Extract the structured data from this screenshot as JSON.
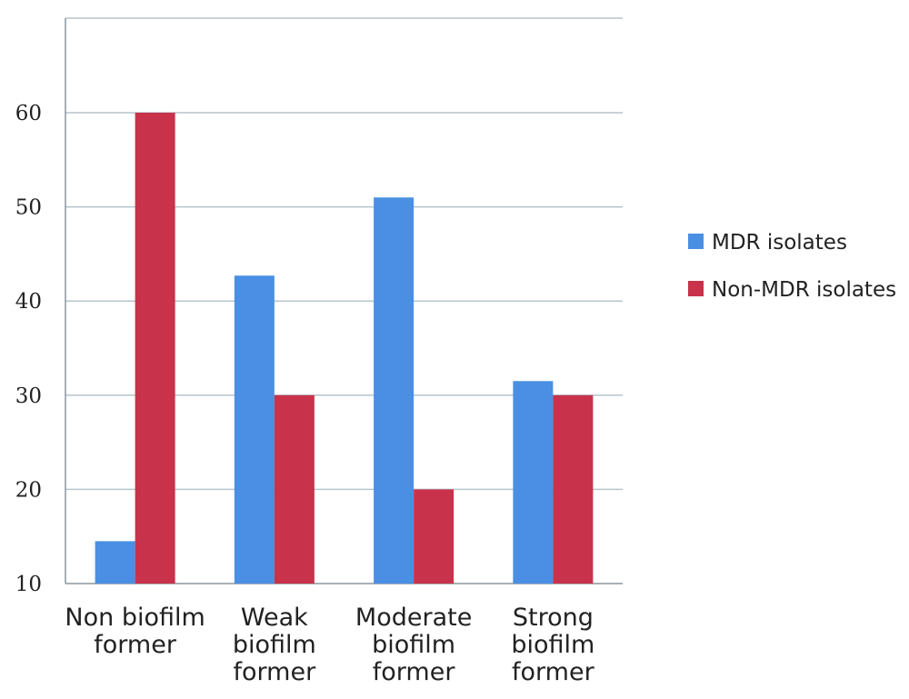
{
  "chart_data": {
    "type": "bar",
    "categories": [
      [
        "Non biofilm",
        "former"
      ],
      [
        "Weak",
        "biofilm",
        "former"
      ],
      [
        "Moderate",
        "biofilm",
        "former"
      ],
      [
        "Strong",
        "biofilm",
        "former"
      ]
    ],
    "series": [
      {
        "name": "MDR isolates",
        "values": [
          14.5,
          42.7,
          51,
          31.5
        ]
      },
      {
        "name": "Non-MDR isolates",
        "values": [
          60,
          30,
          20,
          30
        ]
      }
    ],
    "ylim": [
      10,
      60
    ],
    "yticks": [
      10,
      20,
      30,
      40,
      50,
      60
    ],
    "grid": true,
    "legend_position": "right",
    "title": "",
    "xlabel": "",
    "ylabel": ""
  },
  "colors": {
    "mdr": "#4a8fe3",
    "non_mdr": "#c8324a",
    "grid": "#b7c4cc",
    "axis": "#8a969e"
  }
}
